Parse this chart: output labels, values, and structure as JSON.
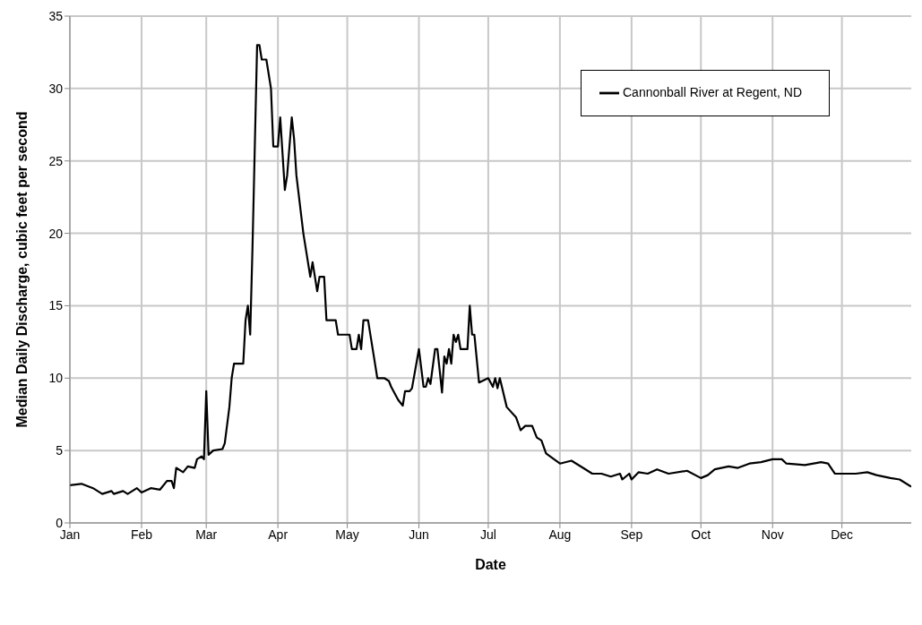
{
  "chart_data": {
    "type": "line",
    "xlabel": "Date",
    "ylabel": "Median Daily Discharge, cubic feet per second",
    "x": [
      "--01-01",
      "--01-06",
      "--01-11",
      "--01-15",
      "--01-19",
      "--01-20",
      "--01-24",
      "--01-26",
      "--01-30",
      "--02-01",
      "--02-05",
      "--02-09",
      "--02-12",
      "--02-14",
      "--02-15",
      "--02-16",
      "--02-19",
      "--02-21",
      "--02-24",
      "--02-25",
      "--02-27",
      "--02-28",
      "--03-01",
      "--03-02",
      "--03-04",
      "--03-08",
      "--03-09",
      "--03-11",
      "--03-12",
      "--03-13",
      "--03-17",
      "--03-18",
      "--03-19",
      "--03-20",
      "--03-21",
      "--03-23",
      "--03-24",
      "--03-25",
      "--03-27",
      "--03-29",
      "--03-30",
      "--04-01",
      "--04-02",
      "--04-04",
      "--04-05",
      "--04-07",
      "--04-08",
      "--04-09",
      "--04-12",
      "--04-14",
      "--04-15",
      "--04-16",
      "--04-18",
      "--04-19",
      "--04-21",
      "--04-22",
      "--04-26",
      "--04-27",
      "--05-02",
      "--05-03",
      "--05-05",
      "--05-06",
      "--05-07",
      "--05-08",
      "--05-10",
      "--05-12",
      "--05-14",
      "--05-17",
      "--05-19",
      "--05-20",
      "--05-23",
      "--05-25",
      "--05-26",
      "--05-28",
      "--05-29",
      "--06-01",
      "--06-03",
      "--06-04",
      "--06-05",
      "--06-06",
      "--06-08",
      "--06-09",
      "--06-11",
      "--06-12",
      "--06-13",
      "--06-14",
      "--06-15",
      "--06-16",
      "--06-17",
      "--06-18",
      "--06-19",
      "--06-22",
      "--06-23",
      "--06-24",
      "--06-25",
      "--06-27",
      "--07-01",
      "--07-03",
      "--07-04",
      "--07-05",
      "--07-06",
      "--07-09",
      "--07-13",
      "--07-15",
      "--07-17",
      "--07-20",
      "--07-22",
      "--07-24",
      "--07-26",
      "--08-01",
      "--08-06",
      "--08-11",
      "--08-15",
      "--08-19",
      "--08-23",
      "--08-27",
      "--08-28",
      "--08-31",
      "--09-01",
      "--09-04",
      "--09-08",
      "--09-12",
      "--09-17",
      "--09-25",
      "--10-01",
      "--10-04",
      "--10-07",
      "--10-13",
      "--10-17",
      "--10-22",
      "--10-27",
      "--11-01",
      "--11-05",
      "--11-07",
      "--11-15",
      "--11-22",
      "--11-25",
      "--11-28",
      "--12-01",
      "--12-07",
      "--12-12",
      "--12-16",
      "--12-22",
      "--12-26",
      "--12-31"
    ],
    "series": [
      {
        "name": "Cannonball River at Regent, ND",
        "color": "#000000",
        "values": [
          2.6,
          2.7,
          2.4,
          2.0,
          2.2,
          2.0,
          2.2,
          2.0,
          2.4,
          2.1,
          2.4,
          2.3,
          2.9,
          2.9,
          2.4,
          3.8,
          3.5,
          3.9,
          3.8,
          4.4,
          4.6,
          4.4,
          9.1,
          4.7,
          5.0,
          5.1,
          5.5,
          8,
          10,
          11,
          11,
          14,
          15,
          13,
          19,
          33,
          33,
          32,
          32,
          30,
          26,
          26,
          28,
          23,
          24,
          28,
          26.5,
          24,
          20,
          18,
          17,
          18,
          16,
          17,
          17,
          14,
          14,
          13,
          13,
          12,
          12,
          13,
          12,
          14,
          14,
          12,
          10,
          10,
          9.8,
          9.4,
          8.5,
          8.1,
          9.1,
          9.1,
          9.3,
          12,
          9.4,
          9.4,
          10,
          9.6,
          12,
          12,
          9.0,
          11.5,
          11,
          12,
          11,
          13,
          12.5,
          13,
          12,
          12,
          15,
          13,
          13,
          9.7,
          10,
          9.4,
          10,
          9.3,
          10,
          8.0,
          7.3,
          6.4,
          6.7,
          6.7,
          5.9,
          5.7,
          4.8,
          4.1,
          4.3,
          3.8,
          3.4,
          3.4,
          3.2,
          3.4,
          3.0,
          3.4,
          3.0,
          3.5,
          3.4,
          3.7,
          3.4,
          3.6,
          3.1,
          3.3,
          3.7,
          3.9,
          3.8,
          4.1,
          4.2,
          4.4,
          4.4,
          4.1,
          4.0,
          4.2,
          4.1,
          3.4,
          3.4,
          3.4,
          3.5,
          3.3,
          3.1,
          3.0,
          2.5
        ]
      }
    ],
    "xlim": [
      "--01-01",
      "--12-31"
    ],
    "xticks": [
      {
        "value": "--01-01",
        "label": "Jan"
      },
      {
        "value": "--02-01",
        "label": "Feb"
      },
      {
        "value": "--03-01",
        "label": "Mar"
      },
      {
        "value": "--04-01",
        "label": "Apr"
      },
      {
        "value": "--05-01",
        "label": "May"
      },
      {
        "value": "--06-01",
        "label": "Jun"
      },
      {
        "value": "--07-01",
        "label": "Jul"
      },
      {
        "value": "--08-01",
        "label": "Aug"
      },
      {
        "value": "--09-01",
        "label": "Sep"
      },
      {
        "value": "--10-01",
        "label": "Oct"
      },
      {
        "value": "--11-01",
        "label": "Nov"
      },
      {
        "value": "--12-01",
        "label": "Dec"
      }
    ],
    "ylim": [
      0,
      35
    ],
    "yticks": [
      0,
      5,
      10,
      15,
      20,
      25,
      30,
      35
    ],
    "grid": true,
    "legend": "top right",
    "marker": "none",
    "line_style": "solid"
  }
}
